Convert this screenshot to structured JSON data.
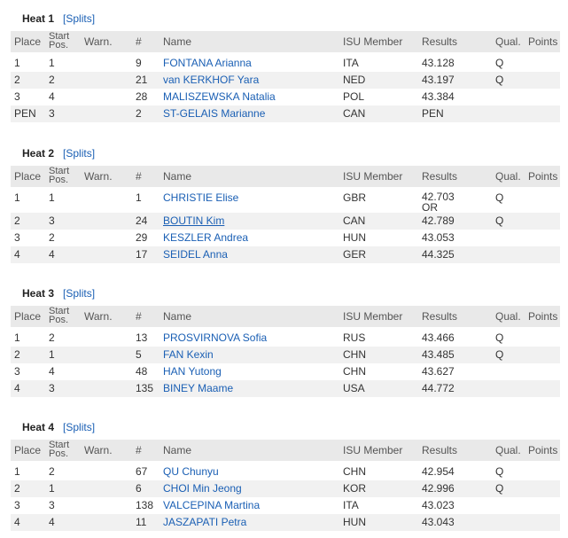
{
  "headers": {
    "place": "Place",
    "start_line1": "Start",
    "start_line2": "Pos.",
    "warn": "Warn.",
    "num": "#",
    "name": "Name",
    "member": "ISU Member",
    "results": "Results",
    "qual": "Qual.",
    "points": "Points"
  },
  "splits_label": "[Splits]",
  "heats": [
    {
      "title": "Heat 1",
      "rows": [
        {
          "place": "1",
          "start": "1",
          "num": "9",
          "name": "FONTANA Arianna",
          "member": "ITA",
          "result": "43.128",
          "result2": "",
          "qual": "Q"
        },
        {
          "place": "2",
          "start": "2",
          "num": "21",
          "name": "van KERKHOF Yara",
          "member": "NED",
          "result": "43.197",
          "result2": "",
          "qual": "Q"
        },
        {
          "place": "3",
          "start": "4",
          "num": "28",
          "name": "MALISZEWSKA Natalia",
          "member": "POL",
          "result": "43.384",
          "result2": "",
          "qual": ""
        },
        {
          "place": "PEN",
          "start": "3",
          "num": "2",
          "name": "ST-GELAIS Marianne",
          "member": "CAN",
          "result": "PEN",
          "result2": "",
          "qual": ""
        }
      ]
    },
    {
      "title": "Heat 2",
      "rows": [
        {
          "place": "1",
          "start": "1",
          "num": "1",
          "name": "CHRISTIE Elise",
          "member": "GBR",
          "result": "42.703",
          "result2": "OR",
          "qual": "Q"
        },
        {
          "place": "2",
          "start": "3",
          "num": "24",
          "name": "BOUTIN Kim",
          "member": "CAN",
          "result": "42.789",
          "result2": "",
          "qual": "Q"
        },
        {
          "place": "3",
          "start": "2",
          "num": "29",
          "name": "KESZLER Andrea",
          "member": "HUN",
          "result": "43.053",
          "result2": "",
          "qual": ""
        },
        {
          "place": "4",
          "start": "4",
          "num": "17",
          "name": "SEIDEL Anna",
          "member": "GER",
          "result": "44.325",
          "result2": "",
          "qual": ""
        }
      ]
    },
    {
      "title": "Heat 3",
      "rows": [
        {
          "place": "1",
          "start": "2",
          "num": "13",
          "name": "PROSVIRNOVA Sofia",
          "member": "RUS",
          "result": "43.466",
          "result2": "",
          "qual": "Q"
        },
        {
          "place": "2",
          "start": "1",
          "num": "5",
          "name": "FAN Kexin",
          "member": "CHN",
          "result": "43.485",
          "result2": "",
          "qual": "Q"
        },
        {
          "place": "3",
          "start": "4",
          "num": "48",
          "name": "HAN Yutong",
          "member": "CHN",
          "result": "43.627",
          "result2": "",
          "qual": ""
        },
        {
          "place": "4",
          "start": "3",
          "num": "135",
          "name": "BINEY Maame",
          "member": "USA",
          "result": "44.772",
          "result2": "",
          "qual": ""
        }
      ]
    },
    {
      "title": "Heat 4",
      "rows": [
        {
          "place": "1",
          "start": "2",
          "num": "67",
          "name": "QU Chunyu",
          "member": "CHN",
          "result": "42.954",
          "result2": "",
          "qual": "Q"
        },
        {
          "place": "2",
          "start": "1",
          "num": "6",
          "name": "CHOI Min Jeong",
          "member": "KOR",
          "result": "42.996",
          "result2": "",
          "qual": "Q"
        },
        {
          "place": "3",
          "start": "3",
          "num": "138",
          "name": "VALCEPINA Martina",
          "member": "ITA",
          "result": "43.023",
          "result2": "",
          "qual": ""
        },
        {
          "place": "4",
          "start": "4",
          "num": "11",
          "name": "JASZAPATI Petra",
          "member": "HUN",
          "result": "43.043",
          "result2": "",
          "qual": ""
        }
      ]
    }
  ]
}
